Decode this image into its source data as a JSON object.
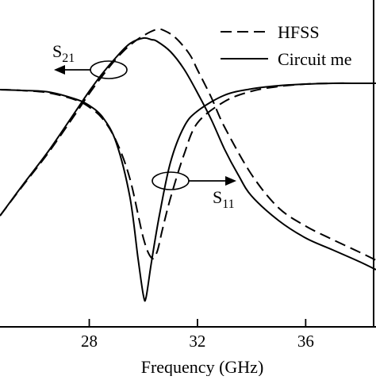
{
  "chart_data": {
    "type": "line",
    "xlabel": "Frequency (GHz)",
    "ylabel": "",
    "xlim": [
      24.7,
      38.6
    ],
    "xticks": [
      28,
      32,
      36
    ],
    "x_tick_labels": [
      "28",
      "32",
      "36"
    ],
    "grid": false,
    "legend": {
      "placement": "top-right",
      "entries": [
        {
          "label": "HFSS",
          "style": "dashed"
        },
        {
          "label": "Circuit me",
          "style": "solid"
        }
      ]
    },
    "annotations": [
      {
        "text_main": "S",
        "text_sub": "21",
        "arrow": "left"
      },
      {
        "text_main": "S",
        "text_sub": "11",
        "arrow": "right"
      }
    ],
    "series": [
      {
        "line_style": "solid",
        "x": [
          24.7,
          25.5,
          26.5,
          27.5,
          28.0,
          28.5,
          29.0,
          29.5,
          29.8,
          30.0,
          30.1,
          30.3,
          30.6,
          31.0,
          31.5,
          32.0,
          33.0,
          34.0,
          35.0,
          36.0,
          37.0,
          38.0,
          38.6
        ],
        "y": [
          113,
          114,
          116,
          125,
          133,
          148,
          180,
          248,
          325,
          372,
          375,
          330,
          270,
          205,
          160,
          140,
          120,
          112,
          108,
          106,
          105,
          105,
          105
        ]
      },
      {
        "line_style": "dashed",
        "x": [
          24.7,
          25.5,
          26.5,
          27.5,
          28.0,
          28.5,
          29.0,
          29.5,
          30.0,
          30.3,
          30.5,
          30.7,
          31.0,
          31.5,
          32.0,
          33.0,
          34.0,
          35.0,
          36.0,
          37.0,
          38.0,
          38.6
        ],
        "y": [
          113,
          114,
          117,
          126,
          135,
          150,
          178,
          225,
          300,
          325,
          318,
          290,
          250,
          195,
          155,
          128,
          115,
          109,
          106,
          105,
          105,
          105
        ]
      },
      {
        "line_style": "solid",
        "x": [
          24.7,
          25.5,
          26.5,
          27.5,
          28.0,
          28.5,
          29.0,
          29.5,
          30.0,
          30.3,
          30.5,
          31.0,
          31.5,
          32.0,
          32.5,
          33.0,
          33.5,
          34.0,
          35.0,
          36.0,
          37.0,
          38.0,
          38.6
        ],
        "y": [
          272,
          235,
          190,
          140,
          115,
          92,
          72,
          55,
          48,
          50,
          52,
          65,
          87,
          117,
          150,
          188,
          220,
          247,
          278,
          300,
          315,
          330,
          340
        ]
      },
      {
        "line_style": "dashed",
        "x": [
          24.7,
          25.5,
          26.5,
          27.5,
          28.0,
          28.5,
          29.0,
          29.5,
          30.0,
          30.5,
          30.8,
          31.2,
          31.7,
          32.0,
          32.5,
          33.0,
          34.0,
          35.0,
          36.0,
          37.0,
          38.0,
          38.6
        ],
        "y": [
          272,
          236,
          192,
          143,
          118,
          95,
          74,
          57,
          45,
          37,
          39,
          48,
          68,
          88,
          122,
          160,
          220,
          262,
          285,
          302,
          318,
          328
        ]
      }
    ]
  }
}
